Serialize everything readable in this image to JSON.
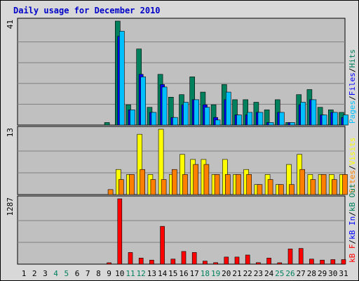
{
  "title": "Daily usage for December 2010",
  "colors": {
    "hits": "#00805c",
    "files": "#0000ff",
    "pages": "#00c0ff",
    "visits": "#ffff00",
    "sites": "#ff8000",
    "kbout": "#00805c",
    "kbin": "#0000ff",
    "kbf": "#ff0000",
    "weekday_label": "#000000",
    "weekend_label": "#00805c"
  },
  "chart_data": [
    {
      "type": "bar",
      "panel": "top",
      "ymax_label": "41",
      "ylim": [
        0,
        41
      ],
      "right_labels": [
        {
          "text": "Pages",
          "key": "pages"
        },
        {
          "text": "/",
          "key": "weekday_label"
        },
        {
          "text": "Files",
          "key": "files"
        },
        {
          "text": "/",
          "key": "weekday_label"
        },
        {
          "text": "Hits",
          "key": "hits"
        }
      ],
      "categories": [
        "1",
        "2",
        "3",
        "4",
        "5",
        "6",
        "7",
        "8",
        "9",
        "10",
        "11",
        "12",
        "13",
        "14",
        "15",
        "16",
        "17",
        "18",
        "19",
        "20",
        "21",
        "22",
        "23",
        "24",
        "25",
        "26",
        "27",
        "28",
        "29",
        "30",
        "31"
      ],
      "series": [
        {
          "name": "Hits",
          "color_key": "hits",
          "values": [
            0,
            0,
            0,
            0,
            0,
            0,
            0,
            0,
            1,
            41,
            8,
            30,
            7,
            20,
            11,
            12,
            19,
            13,
            8,
            16,
            10,
            10,
            9,
            6,
            10,
            1,
            12,
            14,
            7,
            6,
            5
          ]
        },
        {
          "name": "Files",
          "color_key": "files",
          "values": [
            0,
            0,
            0,
            0,
            0,
            0,
            0,
            0,
            0,
            35,
            6,
            20,
            5,
            16,
            3,
            8,
            10,
            8,
            3,
            10,
            4,
            4,
            5,
            1,
            5,
            1,
            8,
            10,
            4,
            5,
            3
          ]
        },
        {
          "name": "Pages",
          "color_key": "pages",
          "values": [
            0,
            0,
            0,
            0,
            0,
            0,
            0,
            0,
            0,
            37,
            6,
            19,
            5,
            15,
            3,
            9,
            10,
            7,
            2,
            13,
            4,
            5,
            5,
            1,
            5,
            1,
            9,
            10,
            4,
            5,
            4
          ]
        }
      ]
    },
    {
      "type": "bar",
      "panel": "middle",
      "ymax_label": "13",
      "ylim": [
        0,
        13
      ],
      "right_labels": [
        {
          "text": "Sites",
          "key": "sites"
        },
        {
          "text": "/",
          "key": "weekday_label"
        },
        {
          "text": "Visits",
          "key": "visits"
        }
      ],
      "categories": [
        "1",
        "2",
        "3",
        "4",
        "5",
        "6",
        "7",
        "8",
        "9",
        "10",
        "11",
        "12",
        "13",
        "14",
        "15",
        "16",
        "17",
        "18",
        "19",
        "20",
        "21",
        "22",
        "23",
        "24",
        "25",
        "26",
        "27",
        "28",
        "29",
        "30",
        "31"
      ],
      "series": [
        {
          "name": "Visits",
          "color_key": "visits",
          "values": [
            0,
            0,
            0,
            0,
            0,
            0,
            0,
            0,
            0,
            5,
            4,
            12,
            4,
            13,
            4,
            8,
            7,
            7,
            4,
            7,
            4,
            5,
            2,
            4,
            2,
            6,
            8,
            4,
            4,
            4,
            4
          ]
        },
        {
          "name": "Sites",
          "color_key": "sites",
          "values": [
            0,
            0,
            0,
            0,
            0,
            0,
            0,
            0,
            1,
            3,
            4,
            5,
            3,
            3,
            5,
            4,
            6,
            6,
            4,
            4,
            4,
            4,
            2,
            3,
            2,
            2,
            5,
            3,
            4,
            3,
            4
          ]
        }
      ]
    },
    {
      "type": "bar",
      "panel": "bottom",
      "ymax_label": "1287",
      "ylim": [
        0,
        1287
      ],
      "right_labels": [
        {
          "text": "kB F",
          "key": "kbf"
        },
        {
          "text": "/",
          "key": "weekday_label"
        },
        {
          "text": "kB In",
          "key": "kbin"
        },
        {
          "text": "/",
          "key": "weekday_label"
        },
        {
          "text": "kB Out",
          "key": "kbout"
        }
      ],
      "categories": [
        "1",
        "2",
        "3",
        "4",
        "5",
        "6",
        "7",
        "8",
        "9",
        "10",
        "11",
        "12",
        "13",
        "14",
        "15",
        "16",
        "17",
        "18",
        "19",
        "20",
        "21",
        "22",
        "23",
        "24",
        "25",
        "26",
        "27",
        "28",
        "29",
        "30",
        "31"
      ],
      "series": [
        {
          "name": "kB F",
          "color_key": "kbf",
          "values": [
            0,
            0,
            0,
            0,
            0,
            0,
            0,
            0,
            20,
            1287,
            230,
            120,
            80,
            745,
            100,
            250,
            230,
            60,
            30,
            140,
            140,
            180,
            30,
            120,
            20,
            300,
            310,
            100,
            80,
            90,
            90
          ]
        }
      ]
    }
  ],
  "x_axis": {
    "labels": [
      {
        "text": "1",
        "weekend": false
      },
      {
        "text": "2",
        "weekend": false
      },
      {
        "text": "3",
        "weekend": false
      },
      {
        "text": "4",
        "weekend": true
      },
      {
        "text": "5",
        "weekend": true
      },
      {
        "text": "6",
        "weekend": false
      },
      {
        "text": "7",
        "weekend": false
      },
      {
        "text": "8",
        "weekend": false
      },
      {
        "text": "9",
        "weekend": false
      },
      {
        "text": "10",
        "weekend": false
      },
      {
        "text": "11",
        "weekend": true
      },
      {
        "text": "12",
        "weekend": true
      },
      {
        "text": "13",
        "weekend": false
      },
      {
        "text": "14",
        "weekend": false
      },
      {
        "text": "15",
        "weekend": false
      },
      {
        "text": "16",
        "weekend": false
      },
      {
        "text": "17",
        "weekend": false
      },
      {
        "text": "18",
        "weekend": true
      },
      {
        "text": "19",
        "weekend": true
      },
      {
        "text": "20",
        "weekend": false
      },
      {
        "text": "21",
        "weekend": false
      },
      {
        "text": "22",
        "weekend": false
      },
      {
        "text": "23",
        "weekend": false
      },
      {
        "text": "24",
        "weekend": false
      },
      {
        "text": "25",
        "weekend": true
      },
      {
        "text": "26",
        "weekend": true
      },
      {
        "text": "27",
        "weekend": false
      },
      {
        "text": "28",
        "weekend": false
      },
      {
        "text": "29",
        "weekend": false
      },
      {
        "text": "30",
        "weekend": false
      },
      {
        "text": "31",
        "weekend": false
      }
    ]
  }
}
